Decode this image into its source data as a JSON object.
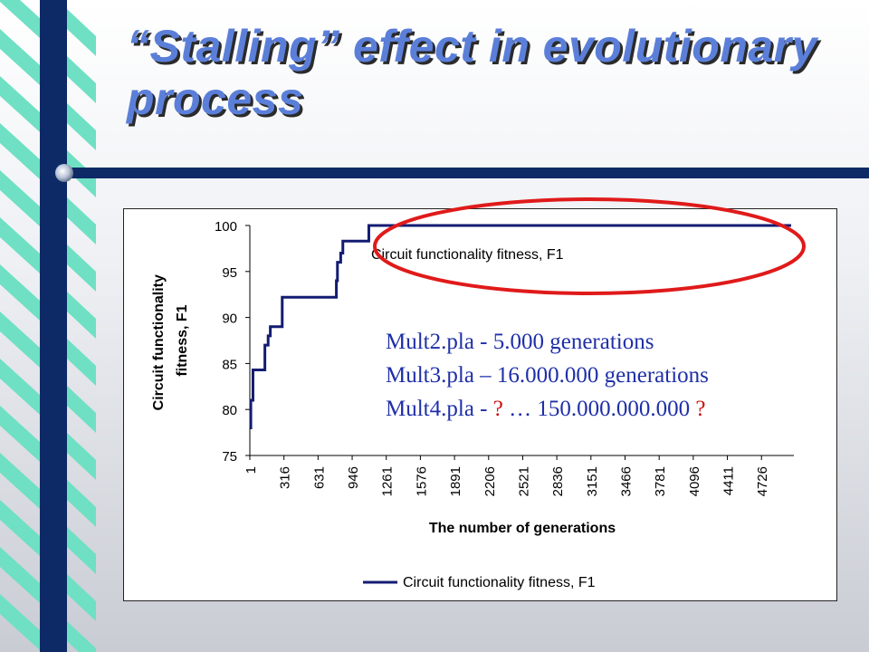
{
  "slide": {
    "title": "“Stalling” effect in evolutionary process"
  },
  "notes": {
    "line1": "Mult2.pla -  5.000 generations",
    "line2": "Mult3.pla – 16.000.000 generations",
    "line3_prefix": "Mult4.pla - ",
    "line3_q1": "?",
    "line3_mid": " … 150.000.000.000 ",
    "line3_q2": "?"
  },
  "colors": {
    "series": "#141c72",
    "highlight_ellipse": "#e01a1a",
    "notes_text": "#1f2fa8"
  },
  "chart_data": {
    "type": "line",
    "ylabel": "Circuit functionality fitness, F1",
    "xlabel": "The number of generations",
    "ylim": [
      75,
      100
    ],
    "yticks": [
      100,
      95,
      90,
      85,
      80,
      75
    ],
    "xlim": [
      1,
      5000
    ],
    "xtick_labels": [
      "1",
      "316",
      "631",
      "946",
      "1261",
      "1576",
      "1891",
      "2206",
      "2521",
      "2836",
      "3151",
      "3466",
      "3781",
      "4096",
      "4411",
      "4726"
    ],
    "annotation": "Circuit functionality fitness, F1",
    "legend": "bottom",
    "series": [
      {
        "name": "Circuit functionality fitness, F1",
        "x": [
          1,
          10,
          30,
          70,
          140,
          170,
          190,
          210,
          300,
          780,
          800,
          810,
          840,
          860,
          1100,
          5000
        ],
        "y": [
          78,
          81,
          84.3,
          84.3,
          87,
          88,
          89,
          89,
          92.2,
          92.2,
          94,
          96,
          97,
          98.3,
          100,
          100
        ]
      }
    ]
  }
}
